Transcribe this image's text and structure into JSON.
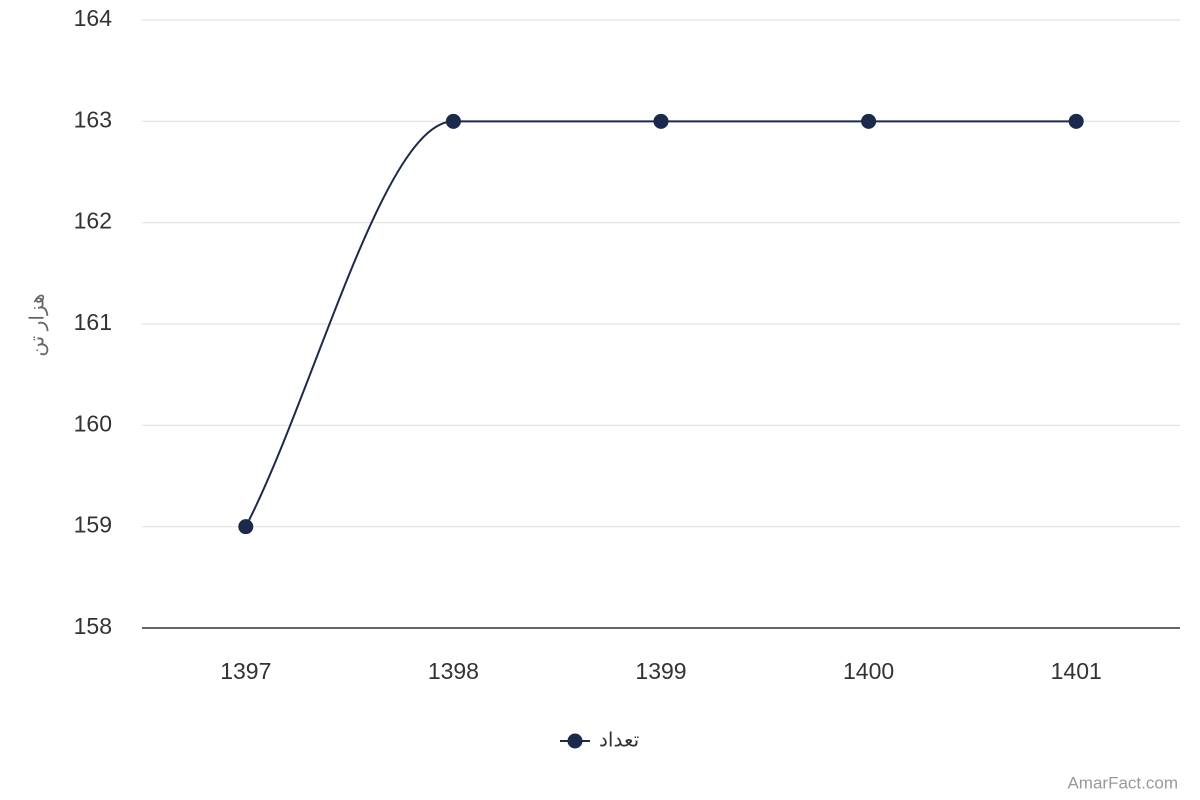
{
  "chart_data": {
    "type": "line",
    "y_label": "هزار تن",
    "categories": [
      "1397",
      "1398",
      "1399",
      "1400",
      "1401"
    ],
    "series": [
      {
        "name": "تعداد",
        "color": "#1b2a4a",
        "values": [
          159,
          163,
          163,
          163,
          163
        ]
      }
    ],
    "ylim": [
      158,
      164
    ],
    "yticks": [
      158,
      159,
      160,
      161,
      162,
      163,
      164
    ],
    "grid": true,
    "legend": "bottom",
    "credit": "AmarFact.com"
  }
}
